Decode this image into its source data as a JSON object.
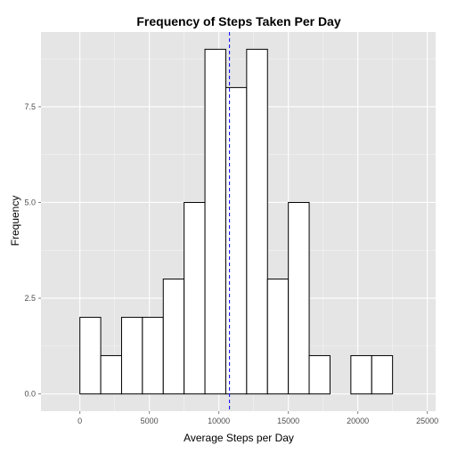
{
  "chart_data": {
    "type": "bar",
    "title": "Frequency of Steps Taken Per Day",
    "xlabel": "Average Steps per Day",
    "ylabel": "Frequency",
    "xlim": [
      -2800,
      25600
    ],
    "ylim": [
      -0.45,
      9.45
    ],
    "x_ticks": [
      0,
      5000,
      10000,
      15000,
      20000,
      25000
    ],
    "x_tick_labels": [
      "0",
      "5000",
      "10000",
      "15000",
      "20000",
      "25000"
    ],
    "y_ticks": [
      0,
      2.5,
      5,
      7.5
    ],
    "y_tick_labels": [
      "0.0",
      "2.5",
      "5.0",
      "7.5"
    ],
    "bins": [
      {
        "x0": -1500,
        "x1": 0,
        "count": 0
      },
      {
        "x0": 0,
        "x1": 1500,
        "count": 2
      },
      {
        "x0": 1500,
        "x1": 3000,
        "count": 1
      },
      {
        "x0": 3000,
        "x1": 4500,
        "count": 2
      },
      {
        "x0": 4500,
        "x1": 6000,
        "count": 2
      },
      {
        "x0": 6000,
        "x1": 7500,
        "count": 3
      },
      {
        "x0": 7500,
        "x1": 9000,
        "count": 5
      },
      {
        "x0": 9000,
        "x1": 10500,
        "count": 9
      },
      {
        "x0": 10500,
        "x1": 12000,
        "count": 8
      },
      {
        "x0": 12000,
        "x1": 13500,
        "count": 9
      },
      {
        "x0": 13500,
        "x1": 15000,
        "count": 3
      },
      {
        "x0": 15000,
        "x1": 16500,
        "count": 5
      },
      {
        "x0": 16500,
        "x1": 18000,
        "count": 1
      },
      {
        "x0": 18000,
        "x1": 19500,
        "count": 0
      },
      {
        "x0": 19500,
        "x1": 21000,
        "count": 1
      },
      {
        "x0": 21000,
        "x1": 22500,
        "count": 1
      },
      {
        "x0": 22500,
        "x1": 24000,
        "count": 0
      }
    ],
    "mean_line": {
      "x": 10766,
      "color": "#0000ff",
      "style": "dashed"
    },
    "grid": true,
    "panel_background": "#e5e5e5",
    "grid_color": "#ffffff",
    "bar_fill": "#ffffff",
    "bar_outline": "#000000"
  }
}
